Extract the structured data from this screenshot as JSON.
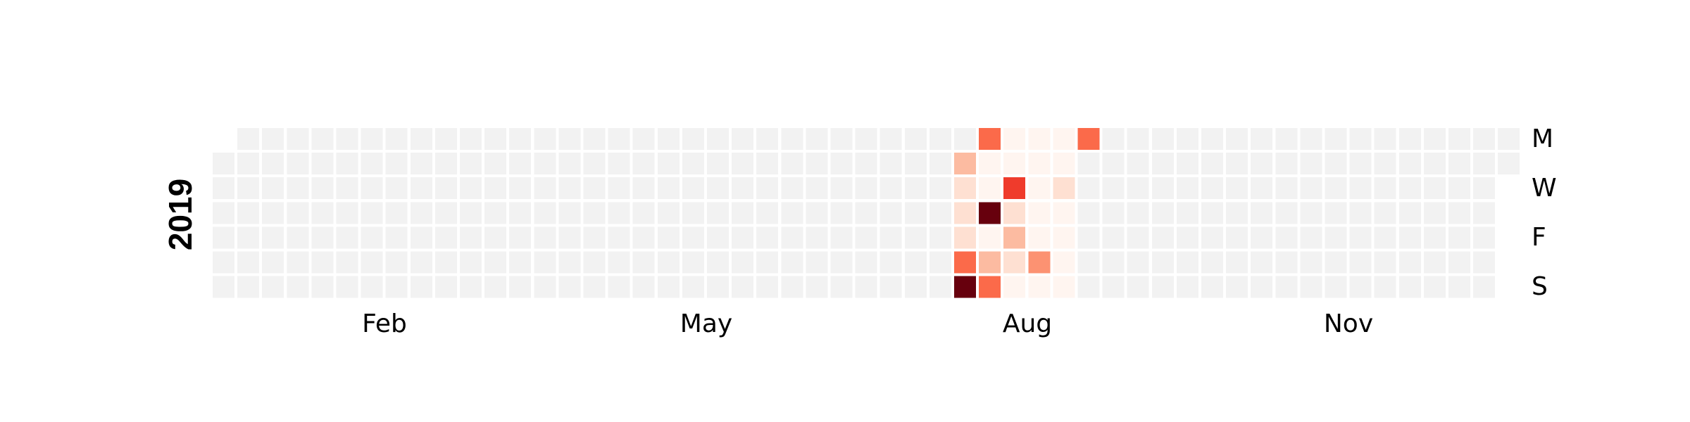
{
  "chart_data": {
    "type": "heatmap",
    "subtype": "calendar",
    "year": "2019",
    "month_labels": [
      "Feb",
      "May",
      "Aug",
      "Nov"
    ],
    "weekday_labels": [
      "M",
      "W",
      "F",
      "S"
    ],
    "grid": false,
    "colors": {
      "empty": "#f2f2f2",
      "scale": [
        "#fff5f0",
        "#fee0d2",
        "#fcbba1",
        "#fc9272",
        "#fb6a4a",
        "#ef3b2c",
        "#cb181d",
        "#a50f15",
        "#67000d"
      ],
      "background": "#ffffff"
    },
    "value_range": [
      0,
      10
    ],
    "values": [
      {
        "date": "2019-07-30",
        "value": 3
      },
      {
        "date": "2019-07-31",
        "value": 1
      },
      {
        "date": "2019-08-01",
        "value": 1
      },
      {
        "date": "2019-08-02",
        "value": 1
      },
      {
        "date": "2019-08-03",
        "value": 5
      },
      {
        "date": "2019-08-04",
        "value": 10
      },
      {
        "date": "2019-08-05",
        "value": 5
      },
      {
        "date": "2019-08-06",
        "value": 0.5
      },
      {
        "date": "2019-08-07",
        "value": 0.5
      },
      {
        "date": "2019-08-08",
        "value": 10
      },
      {
        "date": "2019-08-09",
        "value": 0.5
      },
      {
        "date": "2019-08-10",
        "value": 2
      },
      {
        "date": "2019-08-11",
        "value": 5
      },
      {
        "date": "2019-08-12",
        "value": 0.5
      },
      {
        "date": "2019-08-13",
        "value": 0.5
      },
      {
        "date": "2019-08-14",
        "value": 6
      },
      {
        "date": "2019-08-15",
        "value": 1
      },
      {
        "date": "2019-08-16",
        "value": 2
      },
      {
        "date": "2019-08-17",
        "value": 1
      },
      {
        "date": "2019-08-18",
        "value": 0.5
      },
      {
        "date": "2019-08-19",
        "value": 0.5
      },
      {
        "date": "2019-08-20",
        "value": 0.5
      },
      {
        "date": "2019-08-21",
        "value": 0.5
      },
      {
        "date": "2019-08-22",
        "value": 0.5
      },
      {
        "date": "2019-08-23",
        "value": 0.5
      },
      {
        "date": "2019-08-24",
        "value": 4
      },
      {
        "date": "2019-08-25",
        "value": 0.5
      },
      {
        "date": "2019-08-26",
        "value": 0.5
      },
      {
        "date": "2019-08-27",
        "value": 0.5
      },
      {
        "date": "2019-08-28",
        "value": 1.5
      },
      {
        "date": "2019-08-29",
        "value": 0.5
      },
      {
        "date": "2019-08-30",
        "value": 0.5
      },
      {
        "date": "2019-08-31",
        "value": 0.5
      },
      {
        "date": "2019-09-01",
        "value": 0.5
      },
      {
        "date": "2019-09-02",
        "value": 5.5
      }
    ]
  }
}
